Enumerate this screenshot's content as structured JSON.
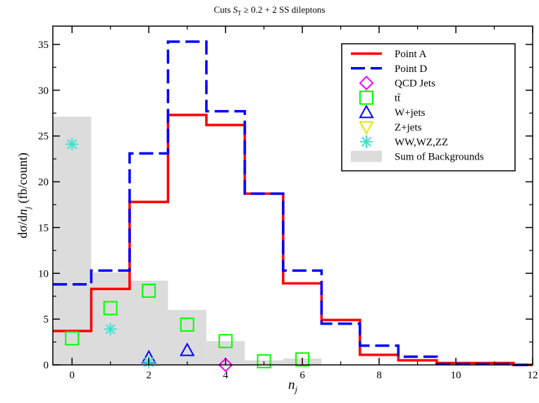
{
  "chart_data": {
    "type": "histogram",
    "title": "Cuts S_T ≥ 0.2 + 2 SS dileptons",
    "xlabel": "n_j",
    "ylabel": "dσ/dn_j (fb/count)",
    "xlim": [
      -0.5,
      12
    ],
    "ylim": [
      0,
      37
    ],
    "xticks": [
      0,
      2,
      4,
      6,
      8,
      10,
      12
    ],
    "yticks": [
      0,
      5,
      10,
      15,
      20,
      25,
      30,
      35
    ],
    "legend_position": "top-right",
    "series": [
      {
        "name": "Point A",
        "kind": "step",
        "color": "#ff0000",
        "style": "solid",
        "x": [
          0,
          1,
          2,
          3,
          4,
          5,
          6,
          7,
          8,
          9,
          10,
          11,
          12
        ],
        "values": [
          3.7,
          8.3,
          17.8,
          27.3,
          26.2,
          18.7,
          8.9,
          4.9,
          1.1,
          0.5,
          0.2,
          0.2,
          0.0
        ]
      },
      {
        "name": "Point D",
        "kind": "step",
        "color": "#0000ff",
        "style": "dashed",
        "x": [
          0,
          1,
          2,
          3,
          4,
          5,
          6,
          7,
          8,
          9,
          10,
          11,
          12
        ],
        "values": [
          8.8,
          10.3,
          23.1,
          35.3,
          27.7,
          18.7,
          10.3,
          4.5,
          2.1,
          0.9,
          0.1,
          0.1,
          0.0
        ]
      },
      {
        "name": "QCD Jets",
        "kind": "marker",
        "marker": "diamond",
        "color": "#ff00ff",
        "x": [
          4
        ],
        "values": [
          0.0
        ]
      },
      {
        "name": "tt̄",
        "kind": "marker",
        "marker": "square",
        "color": "#00ff00",
        "x": [
          0,
          1,
          2,
          3,
          4,
          5,
          6
        ],
        "values": [
          2.9,
          6.2,
          8.1,
          4.4,
          2.6,
          0.4,
          0.6
        ]
      },
      {
        "name": "W+jets",
        "kind": "marker",
        "marker": "triangle-up",
        "color": "#0000ff",
        "x": [
          2,
          3
        ],
        "values": [
          0.8,
          1.6
        ]
      },
      {
        "name": "Z+jets",
        "kind": "marker",
        "marker": "triangle-down",
        "color": "#e6e600",
        "x": [],
        "values": []
      },
      {
        "name": "WW,WZ,ZZ",
        "kind": "marker",
        "marker": "asterisk",
        "color": "#40e0d0",
        "x": [
          0,
          1,
          2
        ],
        "values": [
          24.1,
          3.9,
          0.3
        ]
      },
      {
        "name": "Sum of Backgrounds",
        "kind": "filled-bar",
        "color": "#dcdcdc",
        "x": [
          0,
          1,
          2,
          3,
          4,
          5,
          6
        ],
        "values": [
          27.1,
          10.1,
          9.2,
          6.0,
          2.6,
          0.5,
          0.7
        ]
      }
    ]
  }
}
